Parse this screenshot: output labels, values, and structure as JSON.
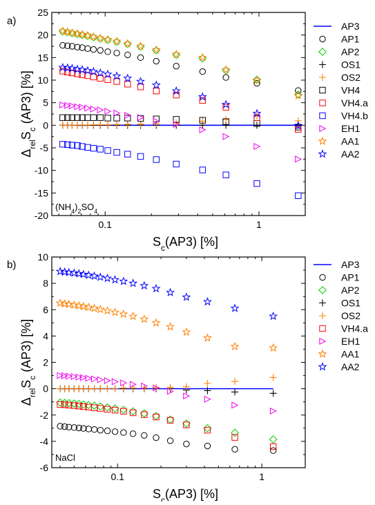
{
  "chart_data": [
    {
      "panel_label": "a)",
      "type": "scatter",
      "x_scale": "log",
      "xlim": [
        0.045,
        2.0
      ],
      "ylim": [
        -20,
        25
      ],
      "xticks": [
        0.1,
        1
      ],
      "xtick_labels": [
        "0.1",
        "1"
      ],
      "yticks": [
        -20,
        -15,
        -10,
        -5,
        0,
        5,
        10,
        15,
        20,
        25
      ],
      "ytick_labels": [
        "-20",
        "-15",
        "-10",
        "-5",
        "0",
        "5",
        "10",
        "15",
        "20",
        "25"
      ],
      "annotation": "(NH4)2SO4",
      "x": [
        0.053,
        0.057,
        0.061,
        0.066,
        0.071,
        0.077,
        0.084,
        0.093,
        0.104,
        0.119,
        0.14,
        0.17,
        0.215,
        0.29,
        0.43,
        0.61,
        0.97,
        1.8
      ],
      "series": [
        {
          "name": "AP3",
          "marker": "line",
          "color": "#0000ff",
          "values": [
            0,
            0,
            0,
            0,
            0,
            0,
            0,
            0,
            0,
            0,
            0,
            0,
            0,
            0,
            0,
            0,
            0,
            0
          ]
        },
        {
          "name": "AP1",
          "marker": "circle",
          "color": "#000000",
          "values": [
            17.7,
            17.6,
            17.5,
            17.3,
            17.2,
            17.0,
            16.8,
            16.6,
            16.3,
            16.0,
            15.6,
            15.0,
            14.2,
            13.1,
            11.9,
            10.6,
            9.3,
            7.7
          ]
        },
        {
          "name": "AP2",
          "marker": "diamond",
          "color": "#00cc00",
          "values": [
            20.8,
            20.6,
            20.4,
            20.2,
            20.0,
            19.8,
            19.5,
            19.2,
            18.9,
            18.5,
            18.0,
            17.4,
            16.6,
            15.6,
            14.8,
            12.2,
            10.1,
            6.8
          ]
        },
        {
          "name": "OS1",
          "marker": "plus",
          "color": "#000000",
          "values": [
            0,
            0,
            0,
            0,
            0,
            0,
            0,
            0,
            0,
            0,
            0,
            0,
            0,
            0,
            0,
            0,
            0,
            0
          ]
        },
        {
          "name": "OS2",
          "marker": "plus",
          "color": "#ff8000",
          "values": [
            0,
            0,
            0,
            0.05,
            0.05,
            0.05,
            0.1,
            0.1,
            0.1,
            0.15,
            0.2,
            0.25,
            0.3,
            0.5,
            0.9,
            1.3,
            2.1,
            1.0
          ]
        },
        {
          "name": "VH4",
          "marker": "square",
          "color": "#000000",
          "values": [
            1.7,
            1.7,
            1.7,
            1.7,
            1.7,
            1.7,
            1.7,
            1.7,
            1.6,
            1.6,
            1.6,
            1.5,
            1.4,
            1.3,
            1.1,
            0.8,
            0.4,
            -0.4
          ]
        },
        {
          "name": "VH4.a",
          "marker": "square",
          "color": "#ff0000",
          "values": [
            12.0,
            11.8,
            11.6,
            11.4,
            11.2,
            11.0,
            10.7,
            10.4,
            10.1,
            9.7,
            9.1,
            8.5,
            7.6,
            6.7,
            5.5,
            4.0,
            1.7,
            -0.9
          ]
        },
        {
          "name": "VH4.b",
          "marker": "square",
          "color": "#0000ff",
          "values": [
            -4.2,
            -4.3,
            -4.4,
            -4.5,
            -4.7,
            -4.9,
            -5.1,
            -5.3,
            -5.6,
            -6.0,
            -6.4,
            -6.9,
            -7.6,
            -8.6,
            -9.9,
            -11.0,
            -12.9,
            -15.6
          ]
        },
        {
          "name": "EH1",
          "marker": "triangle-right",
          "color": "#ee00ee",
          "values": [
            4.5,
            4.4,
            4.3,
            4.1,
            4.0,
            3.8,
            3.6,
            3.4,
            3.1,
            2.7,
            2.2,
            1.7,
            0.9,
            0.2,
            -1.0,
            -2.5,
            -4.7,
            -7.5
          ]
        },
        {
          "name": "AA1",
          "marker": "star",
          "color": "#ff8000",
          "values": [
            20.9,
            20.7,
            20.5,
            20.3,
            20.1,
            19.9,
            19.6,
            19.3,
            19.0,
            18.6,
            18.1,
            17.5,
            16.7,
            15.7,
            15.0,
            12.3,
            10.0,
            6.6
          ]
        },
        {
          "name": "AA2",
          "marker": "star",
          "color": "#0000ff",
          "values": [
            12.8,
            12.7,
            12.6,
            12.4,
            12.3,
            12.1,
            11.9,
            11.6,
            11.3,
            10.9,
            10.4,
            9.7,
            8.9,
            7.6,
            6.3,
            4.6,
            2.6,
            -0.1
          ]
        }
      ]
    },
    {
      "panel_label": "b)",
      "type": "scatter",
      "x_scale": "log",
      "xlim": [
        0.035,
        2.0
      ],
      "ylim": [
        -6,
        10
      ],
      "xticks": [
        0.1,
        1
      ],
      "xtick_labels": [
        "0.1",
        "1"
      ],
      "yticks": [
        -6,
        -4,
        -2,
        0,
        2,
        4,
        6,
        8,
        10
      ],
      "ytick_labels": [
        "-6",
        "-4",
        "-2",
        "0",
        "2",
        "4",
        "6",
        "8",
        "10"
      ],
      "annotation": "NaCl",
      "x": [
        0.04,
        0.043,
        0.046,
        0.05,
        0.054,
        0.058,
        0.063,
        0.069,
        0.076,
        0.085,
        0.096,
        0.11,
        0.128,
        0.153,
        0.185,
        0.232,
        0.3,
        0.42,
        0.65,
        1.2
      ],
      "series": [
        {
          "name": "AP3",
          "marker": "line",
          "color": "#0000ff",
          "values": [
            0,
            0,
            0,
            0,
            0,
            0,
            0,
            0,
            0,
            0,
            0,
            0,
            0,
            0,
            0,
            0,
            0,
            0,
            0,
            0
          ]
        },
        {
          "name": "AP1",
          "marker": "circle",
          "color": "#000000",
          "values": [
            -2.85,
            -2.88,
            -2.92,
            -2.95,
            -2.98,
            -3.02,
            -3.06,
            -3.1,
            -3.15,
            -3.2,
            -3.26,
            -3.33,
            -3.42,
            -3.55,
            -3.72,
            -3.95,
            -4.2,
            -4.35,
            -4.6,
            -4.7
          ]
        },
        {
          "name": "AP2",
          "marker": "diamond",
          "color": "#00cc00",
          "values": [
            -1.05,
            -1.08,
            -1.1,
            -1.13,
            -1.16,
            -1.2,
            -1.24,
            -1.29,
            -1.35,
            -1.42,
            -1.5,
            -1.6,
            -1.72,
            -1.88,
            -2.08,
            -2.35,
            -2.65,
            -3.0,
            -3.35,
            -3.85
          ]
        },
        {
          "name": "OS1",
          "marker": "plus",
          "color": "#000000",
          "values": [
            0,
            0,
            0,
            0,
            0,
            0,
            0,
            0,
            0,
            0,
            0,
            0,
            0,
            0,
            0,
            0,
            -0.1,
            -0.15,
            -0.25,
            -0.35
          ]
        },
        {
          "name": "OS2",
          "marker": "plus",
          "color": "#ff8000",
          "values": [
            0,
            0,
            0,
            0,
            0,
            0,
            0,
            0,
            0,
            0,
            0,
            0.05,
            0.05,
            0.05,
            0.1,
            0.1,
            0.15,
            0.4,
            0.55,
            0.85
          ]
        },
        {
          "name": "VH4.a",
          "marker": "square",
          "color": "#ff0000",
          "values": [
            -1.2,
            -1.22,
            -1.25,
            -1.28,
            -1.32,
            -1.36,
            -1.4,
            -1.45,
            -1.5,
            -1.56,
            -1.63,
            -1.72,
            -1.83,
            -1.97,
            -2.15,
            -2.4,
            -2.75,
            -3.15,
            -3.7,
            -4.4
          ]
        },
        {
          "name": "EH1",
          "marker": "triangle-right",
          "color": "#ee00ee",
          "values": [
            1.0,
            0.98,
            0.95,
            0.92,
            0.88,
            0.84,
            0.79,
            0.74,
            0.68,
            0.61,
            0.53,
            0.44,
            0.33,
            0.2,
            0.05,
            -0.2,
            -0.55,
            -0.8,
            -1.25,
            -1.7
          ]
        },
        {
          "name": "AA1",
          "marker": "star",
          "color": "#ff8000",
          "values": [
            6.5,
            6.45,
            6.4,
            6.35,
            6.3,
            6.24,
            6.18,
            6.1,
            6.02,
            5.92,
            5.8,
            5.66,
            5.5,
            5.28,
            5.0,
            4.7,
            4.3,
            3.85,
            3.2,
            3.1
          ]
        },
        {
          "name": "AA2",
          "marker": "star",
          "color": "#0000ff",
          "values": [
            8.9,
            8.86,
            8.82,
            8.78,
            8.73,
            8.68,
            8.62,
            8.55,
            8.47,
            8.38,
            8.27,
            8.15,
            8.0,
            7.82,
            7.6,
            7.3,
            6.95,
            6.6,
            6.1,
            5.5
          ]
        }
      ]
    }
  ]
}
